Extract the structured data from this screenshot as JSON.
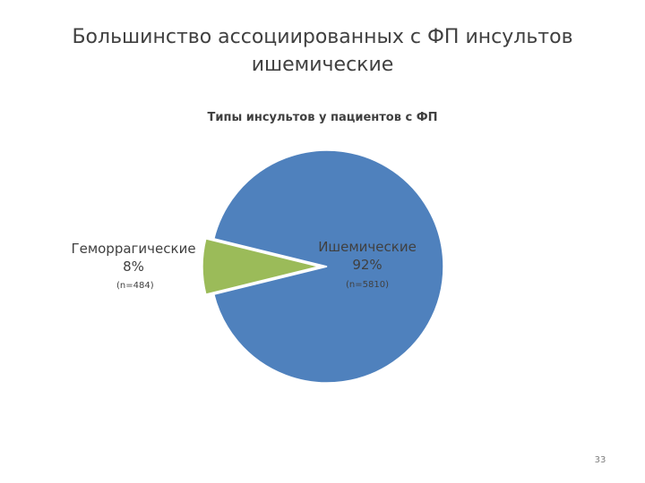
{
  "slide": {
    "title": "Большинство ассоциированных с ФП инсультов ишемические",
    "footnote": "",
    "page_number": "33"
  },
  "chart_data": {
    "type": "pie",
    "title": "Типы инсультов у пациентов с ФП",
    "slices": [
      {
        "label": "Ишемические",
        "percent_label": "92%",
        "n_label": "(n=5810)",
        "value": 5810,
        "percent": 92,
        "color": "#4f81bd"
      },
      {
        "label": "Геморрагические",
        "percent_label": "8%",
        "n_label": "(n=484)",
        "value": 484,
        "percent": 8,
        "color": "#9bbb59"
      }
    ],
    "legend": false
  }
}
